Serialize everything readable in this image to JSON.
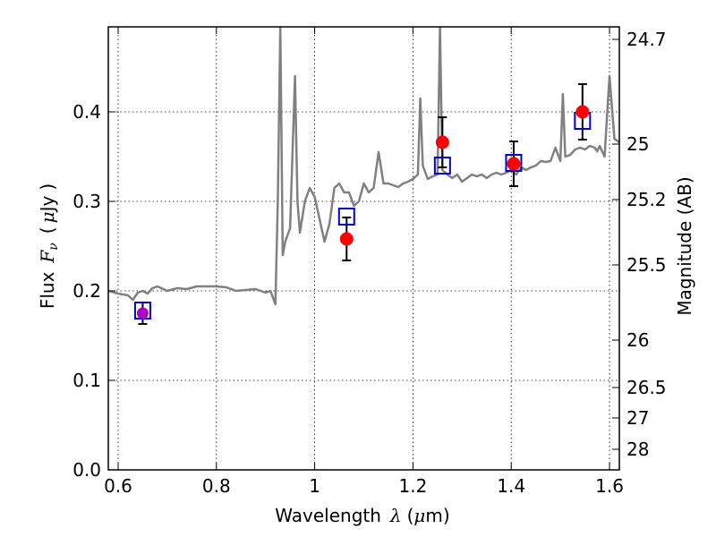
{
  "chart_data": {
    "type": "line",
    "xlabel_parts": [
      "Wavelength",
      "λ",
      "(",
      "μ",
      "m)"
    ],
    "ylabel_parts": [
      "Flux",
      "F",
      "ν",
      "(",
      "μ",
      "Jy",
      ")"
    ],
    "y2label": "Magnitude (AB)",
    "xlim": [
      0.58,
      1.62
    ],
    "ylim": [
      0.0,
      0.495
    ],
    "xticks": [
      0.6,
      0.8,
      1.0,
      1.2,
      1.4,
      1.6
    ],
    "xtick_labels": [
      "0.6",
      "0.8",
      "1",
      "1.2",
      "1.4",
      "1.6"
    ],
    "yticks": [
      0.0,
      0.1,
      0.2,
      0.3,
      0.4
    ],
    "ytick_labels": [
      "0.0",
      "0.1",
      "0.2",
      "0.3",
      "0.4"
    ],
    "y2ticks": [
      {
        "label": "24.7",
        "flux": 0.481
      },
      {
        "label": "25",
        "flux": 0.364
      },
      {
        "label": "25.2",
        "flux": 0.302
      },
      {
        "label": "25.5",
        "flux": 0.229
      },
      {
        "label": "26",
        "flux": 0.145
      },
      {
        "label": "26.5",
        "flux": 0.092
      },
      {
        "label": "27",
        "flux": 0.058
      },
      {
        "label": "28",
        "flux": 0.023
      }
    ],
    "grid": true,
    "series": [
      {
        "kind": "spectrum",
        "color": "#808080",
        "x": [
          0.58,
          0.6,
          0.62,
          0.63,
          0.64,
          0.65,
          0.66,
          0.67,
          0.68,
          0.7,
          0.72,
          0.74,
          0.76,
          0.78,
          0.8,
          0.82,
          0.84,
          0.86,
          0.88,
          0.9,
          0.91,
          0.92,
          0.925,
          0.93,
          0.935,
          0.94,
          0.95,
          0.96,
          0.965,
          0.97,
          0.98,
          0.99,
          1.0,
          1.01,
          1.02,
          1.03,
          1.04,
          1.05,
          1.06,
          1.07,
          1.08,
          1.09,
          1.1,
          1.11,
          1.12,
          1.13,
          1.14,
          1.15,
          1.16,
          1.17,
          1.18,
          1.19,
          1.2,
          1.21,
          1.215,
          1.22,
          1.23,
          1.24,
          1.25,
          1.255,
          1.26,
          1.27,
          1.28,
          1.29,
          1.3,
          1.31,
          1.32,
          1.33,
          1.34,
          1.35,
          1.36,
          1.37,
          1.38,
          1.39,
          1.4,
          1.41,
          1.42,
          1.43,
          1.44,
          1.45,
          1.46,
          1.47,
          1.48,
          1.49,
          1.5,
          1.505,
          1.51,
          1.52,
          1.53,
          1.54,
          1.55,
          1.56,
          1.57,
          1.575,
          1.58,
          1.59,
          1.6,
          1.61,
          1.62
        ],
        "y": [
          0.2,
          0.197,
          0.195,
          0.19,
          0.198,
          0.2,
          0.197,
          0.203,
          0.205,
          0.2,
          0.203,
          0.202,
          0.205,
          0.205,
          0.205,
          0.204,
          0.2,
          0.201,
          0.202,
          0.198,
          0.2,
          0.185,
          0.3,
          0.495,
          0.24,
          0.255,
          0.27,
          0.44,
          0.3,
          0.265,
          0.3,
          0.315,
          0.305,
          0.28,
          0.255,
          0.275,
          0.315,
          0.32,
          0.31,
          0.31,
          0.295,
          0.3,
          0.32,
          0.31,
          0.315,
          0.355,
          0.32,
          0.32,
          0.318,
          0.316,
          0.32,
          0.322,
          0.325,
          0.33,
          0.415,
          0.34,
          0.325,
          0.328,
          0.33,
          0.495,
          0.335,
          0.33,
          0.326,
          0.33,
          0.322,
          0.326,
          0.33,
          0.328,
          0.33,
          0.326,
          0.33,
          0.332,
          0.33,
          0.332,
          0.335,
          0.33,
          0.338,
          0.335,
          0.338,
          0.34,
          0.345,
          0.344,
          0.345,
          0.36,
          0.345,
          0.42,
          0.35,
          0.352,
          0.358,
          0.36,
          0.358,
          0.362,
          0.36,
          0.356,
          0.362,
          0.35,
          0.44,
          0.37,
          0.366
        ],
        "stroke_width": 2.5
      },
      {
        "kind": "model_boxes",
        "color": "#0000cc",
        "x": [
          0.65,
          1.065,
          1.26,
          1.405,
          1.545
        ],
        "y": [
          0.178,
          0.283,
          0.34,
          0.343,
          0.39
        ]
      },
      {
        "kind": "observed",
        "color": "#ff0000",
        "x": [
          0.65,
          1.065,
          1.26,
          1.405,
          1.545
        ],
        "y": [
          0.175,
          0.258,
          0.366,
          0.342,
          0.4
        ],
        "yerr": [
          0.012,
          0.024,
          0.028,
          0.025,
          0.031
        ],
        "first_point_color": "#aa00cc"
      }
    ]
  }
}
